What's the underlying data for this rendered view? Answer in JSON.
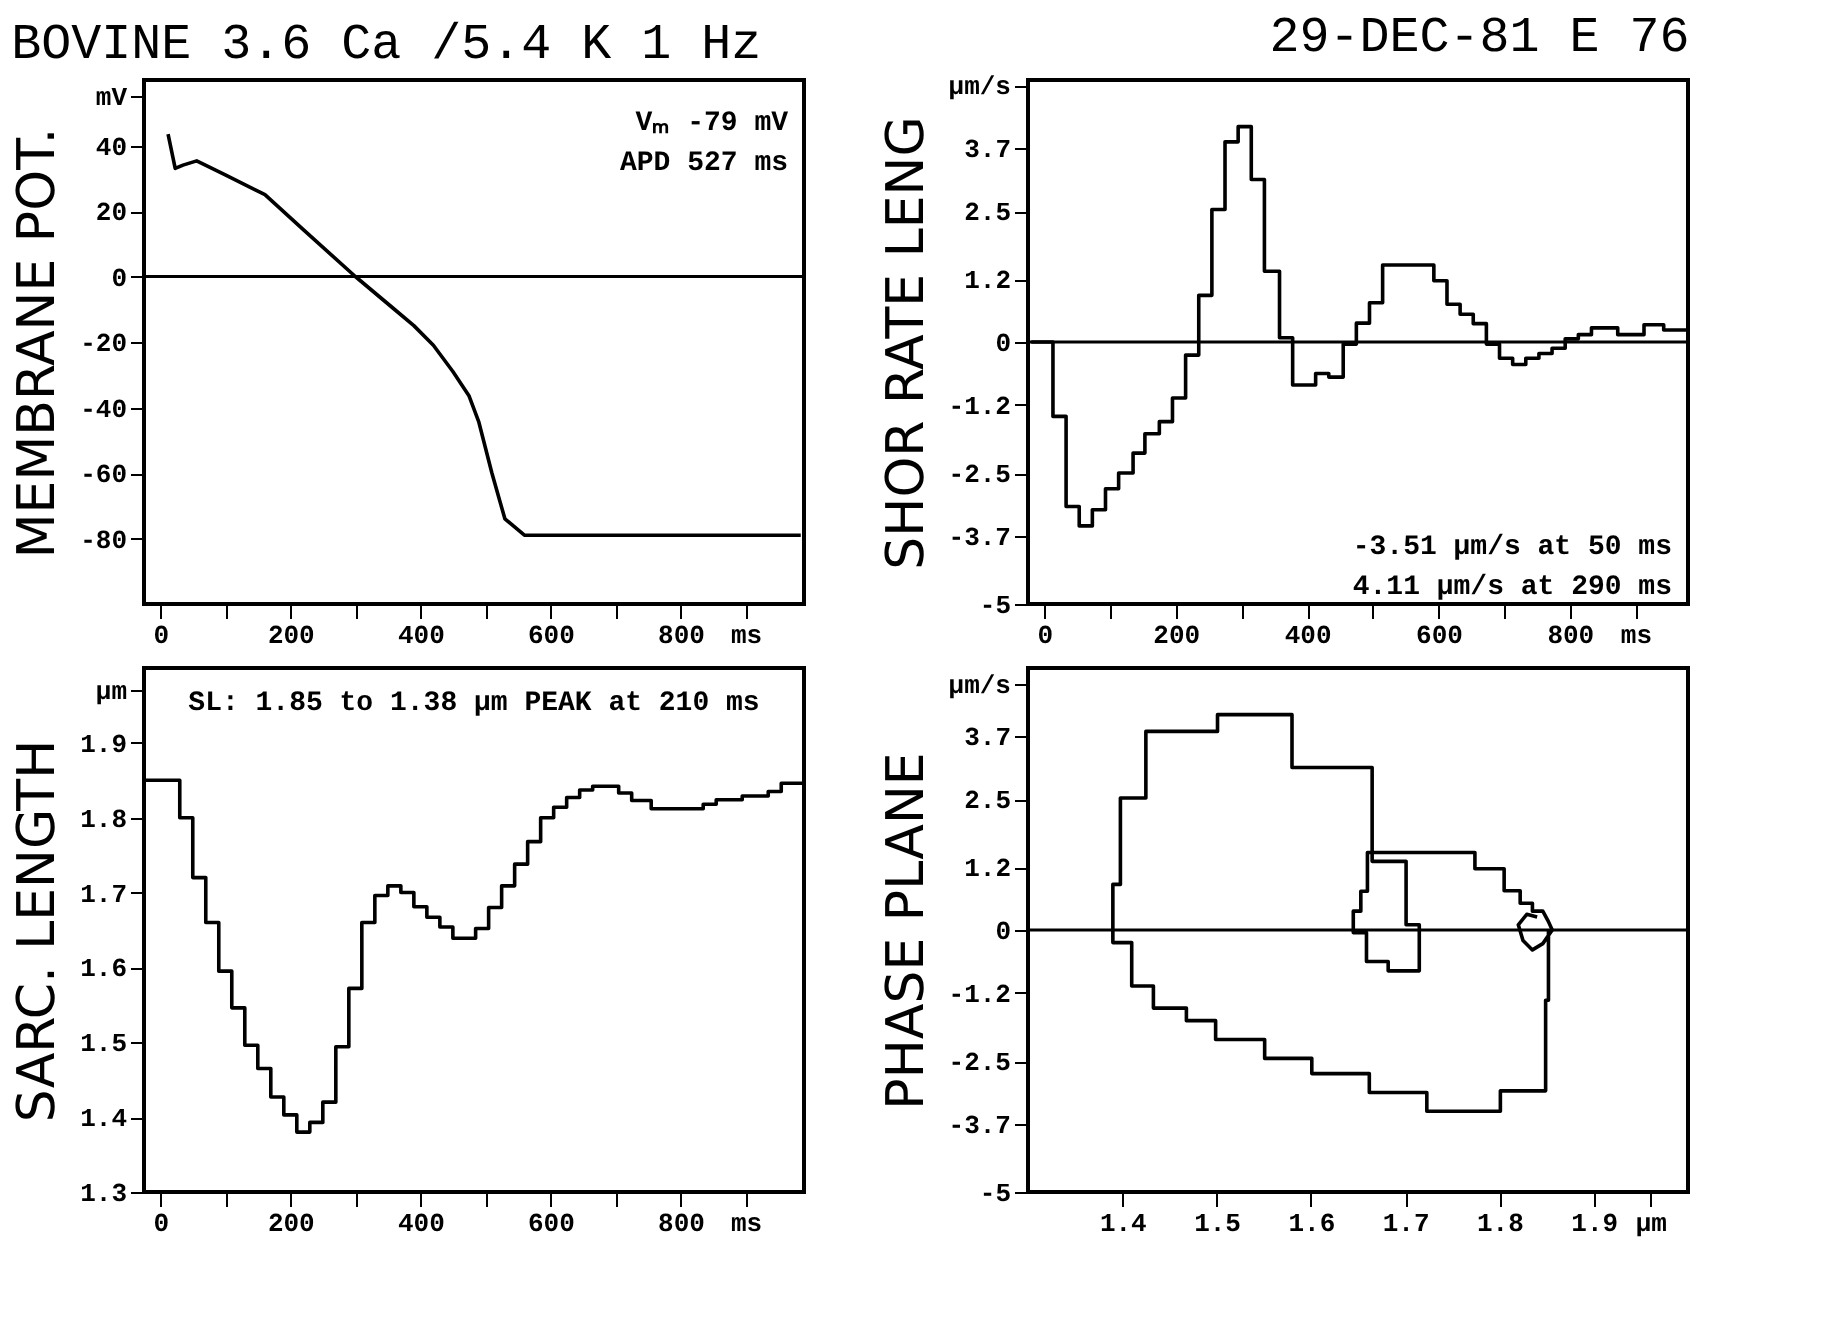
{
  "chart_data": [
    {
      "type": "line",
      "title": "BOVINE 3.6 Ca /5.4 K  1 Hz",
      "ylabel": "MEMBRANE POT.",
      "color": "#000000",
      "marker": "none",
      "line_style": "solid",
      "grid": false,
      "x": [
        12,
        23,
        35,
        56,
        100,
        161,
        220,
        300,
        360,
        390,
        420,
        450,
        475,
        490,
        510,
        530,
        560,
        600,
        700,
        800,
        900,
        985
      ],
      "values": [
        43.5,
        33,
        34,
        35.3,
        31,
        25,
        14.3,
        0,
        -10,
        -15,
        -21,
        -29,
        -36.5,
        -44.5,
        -60,
        -74,
        -79,
        -79,
        -79,
        -79,
        -79,
        -79
      ],
      "xlim": [
        -25,
        990
      ],
      "xticks": [
        0,
        {
          "value": 100,
          "label": null
        },
        200,
        {
          "value": 300,
          "label": null
        },
        400,
        {
          "value": 500,
          "label": null
        },
        600,
        {
          "value": 700,
          "label": null
        },
        800,
        {
          "value": 900,
          "label": "ms"
        }
      ],
      "ylim": [
        -100,
        60
      ],
      "yticks": [
        -80,
        -60,
        -40,
        -20,
        0,
        20,
        40,
        {
          "value": 55,
          "label": "mV"
        }
      ],
      "ref_lines": [
        {
          "axis": "y",
          "value": 0
        }
      ],
      "annotations": [
        "Vₘ -79 mV",
        "APD 527 ms"
      ]
    },
    {
      "type": "step",
      "title": "29-DEC-81 E 76",
      "ylabel": "SHOR RATE LENG",
      "color": "#000000",
      "marker": "none",
      "line_style": "solid",
      "grid": false,
      "x": [
        -20,
        13,
        33,
        53,
        73,
        93,
        113,
        135,
        153,
        175,
        195,
        215,
        235,
        255,
        275,
        295,
        315,
        335,
        358,
        378,
        413,
        433,
        455,
        475,
        495,
        515,
        593,
        613,
        633,
        653,
        673,
        693,
        713,
        733,
        753,
        773,
        793,
        813,
        833,
        873,
        913,
        943,
        978
      ],
      "values": [
        0,
        -1.42,
        -3.14,
        -3.51,
        -3.2,
        -2.8,
        -2.5,
        -2.12,
        -1.75,
        -1.52,
        -1.07,
        -0.25,
        0.89,
        2.53,
        3.82,
        4.11,
        3.1,
        1.35,
        0.08,
        -0.82,
        -0.6,
        -0.67,
        -0.04,
        0.36,
        0.75,
        1.47,
        1.17,
        0.72,
        0.53,
        0.35,
        -0.04,
        -0.31,
        -0.43,
        -0.31,
        -0.22,
        -0.12,
        0.06,
        0.14,
        0.27,
        0.14,
        0.33,
        0.23,
        0.23
      ],
      "xlim": [
        -25,
        980
      ],
      "xticks": [
        0,
        {
          "value": 100,
          "label": null
        },
        200,
        {
          "value": 300,
          "label": null
        },
        400,
        {
          "value": 500,
          "label": null
        },
        600,
        {
          "value": 700,
          "label": null
        },
        800,
        {
          "value": 900,
          "label": "ms"
        }
      ],
      "ylim": [
        -5,
        5
      ],
      "yticks": [
        -5,
        -3.7,
        -2.5,
        -1.2,
        0,
        1.2,
        2.5,
        3.7,
        {
          "value": 4.9,
          "label": "µm/s"
        }
      ],
      "ref_lines": [
        {
          "axis": "y",
          "value": 0
        }
      ],
      "annotations": [
        "-3.51 µm/s at 50 ms",
        "4.11 µm/s at 290 ms"
      ]
    },
    {
      "type": "step",
      "ylabel": "SARC. LENGTH",
      "color": "#000000",
      "marker": "none",
      "line_style": "solid",
      "grid": false,
      "x": [
        -25,
        30,
        50,
        70,
        90,
        110,
        130,
        150,
        170,
        190,
        210,
        230,
        250,
        270,
        290,
        310,
        330,
        350,
        370,
        390,
        410,
        430,
        450,
        485,
        505,
        525,
        545,
        565,
        585,
        605,
        625,
        645,
        665,
        705,
        725,
        755,
        835,
        855,
        895,
        935,
        955,
        990
      ],
      "values": [
        1.85,
        1.8,
        1.72,
        1.66,
        1.595,
        1.546,
        1.496,
        1.465,
        1.427,
        1.403,
        1.38,
        1.393,
        1.42,
        1.494,
        1.572,
        1.66,
        1.696,
        1.709,
        1.7,
        1.681,
        1.667,
        1.654,
        1.639,
        1.652,
        1.68,
        1.709,
        1.738,
        1.768,
        1.8,
        1.814,
        1.827,
        1.837,
        1.842,
        1.833,
        1.823,
        1.812,
        1.818,
        1.824,
        1.829,
        1.835,
        1.846,
        1.846
      ],
      "xlim": [
        -25,
        990
      ],
      "xticks": [
        0,
        {
          "value": 100,
          "label": null
        },
        200,
        {
          "value": 300,
          "label": null
        },
        400,
        {
          "value": 500,
          "label": null
        },
        600,
        {
          "value": 700,
          "label": null
        },
        800,
        {
          "value": 900,
          "label": "ms"
        }
      ],
      "ylim": [
        1.3,
        2.0
      ],
      "yticks": [
        1.3,
        1.4,
        1.5,
        1.6,
        1.7,
        1.8,
        1.9,
        {
          "value": 1.97,
          "label": "µm"
        }
      ],
      "annotations": [
        "SL: 1.85 to 1.38 µm PEAK at 210 ms"
      ]
    },
    {
      "type": "line",
      "ylabel": "PHASE PLANE",
      "color": "#000000",
      "marker": "none",
      "line_style": "solid",
      "grid": false,
      "x": [
        1.852,
        1.852,
        1.849,
        1.849,
        1.801,
        1.801,
        1.723,
        1.723,
        1.662,
        1.662,
        1.601,
        1.601,
        1.551,
        1.551,
        1.499,
        1.499,
        1.468,
        1.468,
        1.433,
        1.433,
        1.41,
        1.41,
        1.39,
        1.39,
        1.398,
        1.398,
        1.425,
        1.425,
        1.501,
        1.501,
        1.58,
        1.58,
        1.665,
        1.665,
        1.701,
        1.701,
        1.715,
        1.715,
        1.682,
        1.682,
        1.659,
        1.659,
        1.645,
        1.645,
        1.653,
        1.653,
        1.66,
        1.66,
        1.774,
        1.774,
        1.805,
        1.805,
        1.822,
        1.822,
        1.835,
        1.835,
        1.846,
        1.852,
        1.856,
        1.846,
        1.835,
        1.825,
        1.82,
        1.829,
        1.84
      ],
      "values": [
        0,
        -1.34,
        -1.34,
        -3.07,
        -3.07,
        -3.46,
        -3.46,
        -3.1,
        -3.1,
        -2.74,
        -2.74,
        -2.45,
        -2.45,
        -2.09,
        -2.09,
        -1.73,
        -1.73,
        -1.49,
        -1.49,
        -1.07,
        -1.07,
        -0.24,
        -0.24,
        0.87,
        0.87,
        2.52,
        2.52,
        3.79,
        3.79,
        4.11,
        4.11,
        3.1,
        3.1,
        1.31,
        1.31,
        0.1,
        0.1,
        -0.78,
        -0.78,
        -0.6,
        -0.6,
        -0.05,
        -0.05,
        0.36,
        0.36,
        0.74,
        0.74,
        1.48,
        1.48,
        1.17,
        1.17,
        0.75,
        0.75,
        0.51,
        0.51,
        0.36,
        0.36,
        0.16,
        0,
        -0.26,
        -0.38,
        -0.2,
        0.1,
        0.3,
        0.25
      ],
      "xlim": [
        1.3,
        2.0
      ],
      "xticks": [
        1.4,
        1.5,
        1.6,
        1.7,
        1.8,
        1.9,
        {
          "value": 1.96,
          "label": "µm"
        }
      ],
      "ylim": [
        -5,
        5
      ],
      "yticks": [
        -5,
        -3.7,
        -2.5,
        -1.2,
        0,
        1.2,
        2.5,
        3.7,
        {
          "value": 4.7,
          "label": "µm/s"
        }
      ],
      "ref_lines": [
        {
          "axis": "y",
          "value": 0
        }
      ]
    }
  ]
}
